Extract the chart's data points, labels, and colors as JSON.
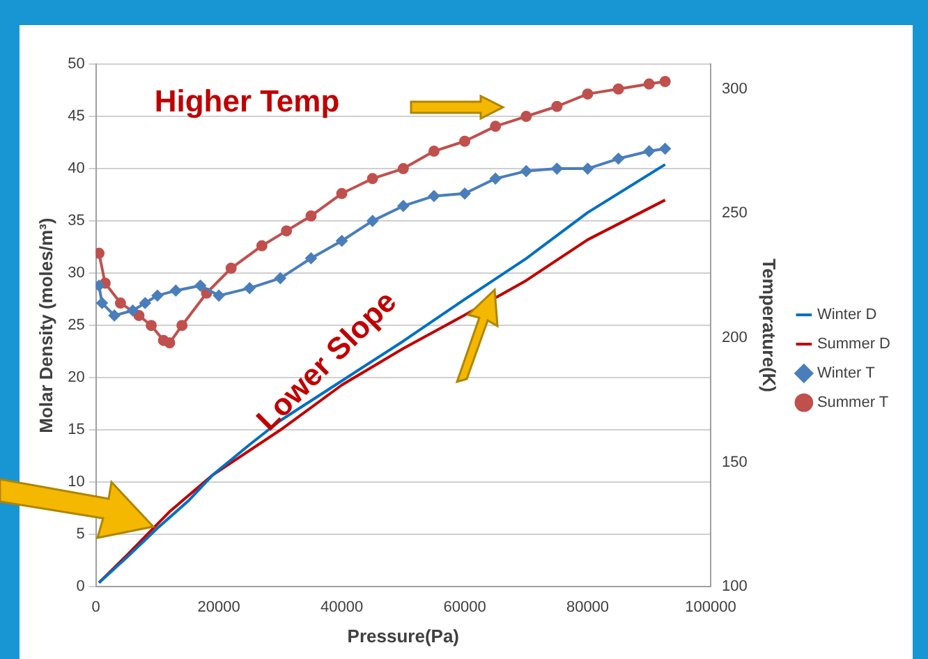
{
  "chart_data": {
    "type": "line",
    "xlabel": "Pressure(Pa)",
    "ylabel": "Molar Density (moles/m³)",
    "y2label": "Temperature(K)",
    "xlim": [
      0,
      100000
    ],
    "xticks": [
      0,
      20000,
      40000,
      60000,
      80000,
      100000
    ],
    "ylim": [
      0,
      50
    ],
    "yticks": [
      0,
      5,
      10,
      15,
      20,
      25,
      30,
      35,
      40,
      45,
      50
    ],
    "y2lim": [
      100,
      310
    ],
    "y2ticks": [
      100,
      150,
      200,
      250,
      300
    ],
    "grid": "y",
    "legend": "right",
    "annotations": [
      "Higher Temp",
      "Lower Slope"
    ],
    "series": [
      {
        "name": "Winter D",
        "color": "#0070c0",
        "marker": "none",
        "x": [
          500,
          5000,
          10000,
          15000,
          19000,
          25000,
          30000,
          40000,
          50000,
          60000,
          70000,
          80000,
          92600
        ],
        "values": [
          0.4,
          2.8,
          5.6,
          8.2,
          10.7,
          13.6,
          15.9,
          19.7,
          23.5,
          27.5,
          31.4,
          35.8,
          40.4
        ]
      },
      {
        "name": "Summer D",
        "color": "#c00000",
        "marker": "none",
        "x": [
          500,
          5000,
          10000,
          12000,
          19000,
          30000,
          40000,
          50000,
          60000,
          70000,
          80000,
          92600
        ],
        "values": [
          0.4,
          3.0,
          6.0,
          7.2,
          10.7,
          15.0,
          19.3,
          22.8,
          26.0,
          29.3,
          33.2,
          37.0
        ]
      },
      {
        "name": "Winter T",
        "color": "#4a7ebb",
        "marker": "diamond",
        "axis": "y2",
        "x": [
          500,
          1000,
          3000,
          6000,
          8000,
          10000,
          13000,
          17000,
          20000,
          25000,
          30000,
          35000,
          40000,
          45000,
          50000,
          55000,
          60000,
          65000,
          70000,
          75000,
          80000,
          85000,
          90000,
          92600
        ],
        "values": [
          221,
          214,
          209,
          211,
          214,
          217,
          219,
          221,
          217,
          220,
          224,
          232,
          239,
          247,
          253,
          257,
          258,
          264,
          267,
          268,
          268,
          272,
          275,
          276
        ]
      },
      {
        "name": "Summer T",
        "color": "#c0504d",
        "marker": "circle",
        "axis": "y2",
        "x": [
          500,
          1500,
          4000,
          7000,
          9000,
          11000,
          12000,
          14000,
          18000,
          22000,
          27000,
          31000,
          35000,
          40000,
          45000,
          50000,
          55000,
          60000,
          65000,
          70000,
          75000,
          80000,
          85000,
          90000,
          92600
        ],
        "values": [
          234,
          222,
          214,
          209,
          205,
          199,
          198,
          205,
          218,
          228,
          237,
          243,
          249,
          258,
          264,
          268,
          275,
          279,
          285,
          289,
          293,
          298,
          300,
          302,
          303
        ]
      }
    ]
  }
}
